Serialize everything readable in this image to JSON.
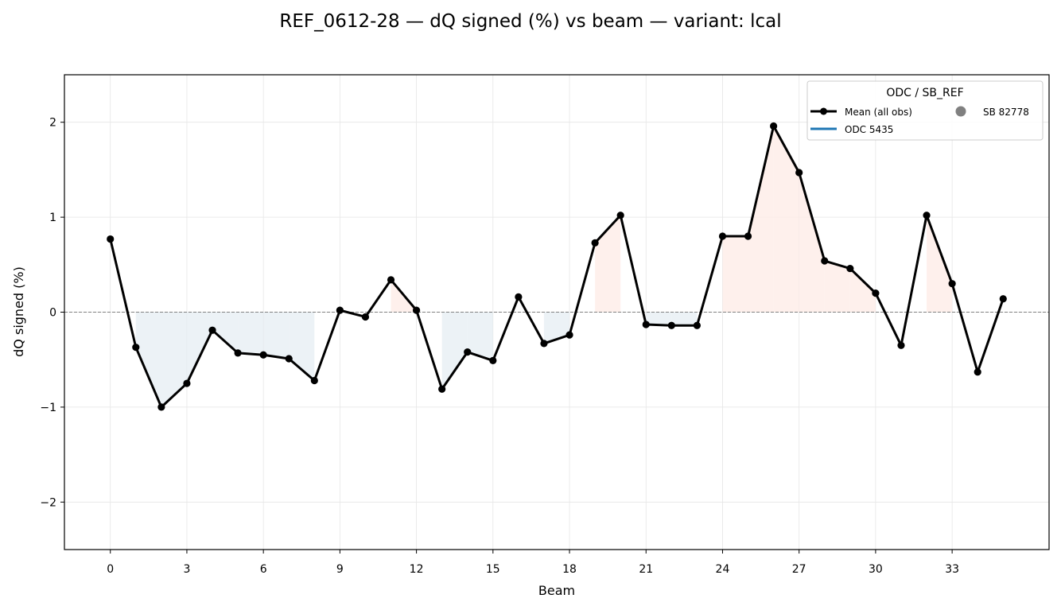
{
  "chart_data": {
    "type": "line",
    "title": "REF_0612-28  —  dQ signed (%) vs beam  —  variant: lcal",
    "xlabel": "Beam",
    "ylabel": "dQ signed (%)",
    "xlim": [
      -1.8,
      36.8
    ],
    "ylim": [
      -2.5,
      2.5
    ],
    "xticks": [
      0,
      3,
      6,
      9,
      12,
      15,
      18,
      21,
      24,
      27,
      30,
      33
    ],
    "yticks": [
      -2,
      -1,
      0,
      1,
      2
    ],
    "ytick_labels": [
      "−2",
      "−1",
      "0",
      "1",
      "2"
    ],
    "grid": true,
    "zero_line": true,
    "legend": {
      "title": "ODC / SB_REF",
      "placement": "top-right",
      "entries": [
        {
          "label": "Mean (all obs)",
          "style": "line-marker",
          "color": "#000000"
        },
        {
          "label": "ODC 5435",
          "style": "line",
          "color": "#1f77b4"
        },
        {
          "label": "SB 82778",
          "style": "marker",
          "color": "#808080"
        }
      ]
    },
    "colors": {
      "mean_line": "#000000",
      "positive_fill": "#fdebe5",
      "negative_fill": "#e4edf2",
      "zero_line": "#808080",
      "grid": "#e6e6e6"
    },
    "series": [
      {
        "name": "Mean (all obs)",
        "x": [
          0,
          1,
          2,
          3,
          4,
          5,
          6,
          7,
          8,
          9,
          10,
          11,
          12,
          13,
          14,
          15,
          16,
          17,
          18,
          19,
          20,
          21,
          22,
          23,
          24,
          25,
          26,
          27,
          28,
          29,
          30,
          31,
          32,
          33,
          34,
          35
        ],
        "values": [
          0.77,
          -0.37,
          -1.0,
          -0.75,
          -0.19,
          -0.43,
          -0.45,
          -0.49,
          -0.72,
          0.02,
          -0.05,
          0.34,
          0.02,
          -0.81,
          -0.42,
          -0.51,
          0.16,
          -0.33,
          -0.24,
          0.73,
          1.02,
          -0.13,
          -0.14,
          -0.14,
          0.8,
          0.8,
          1.96,
          1.47,
          0.54,
          0.46,
          0.2,
          -0.35,
          1.02,
          0.3,
          -0.63,
          0.14
        ]
      }
    ]
  }
}
